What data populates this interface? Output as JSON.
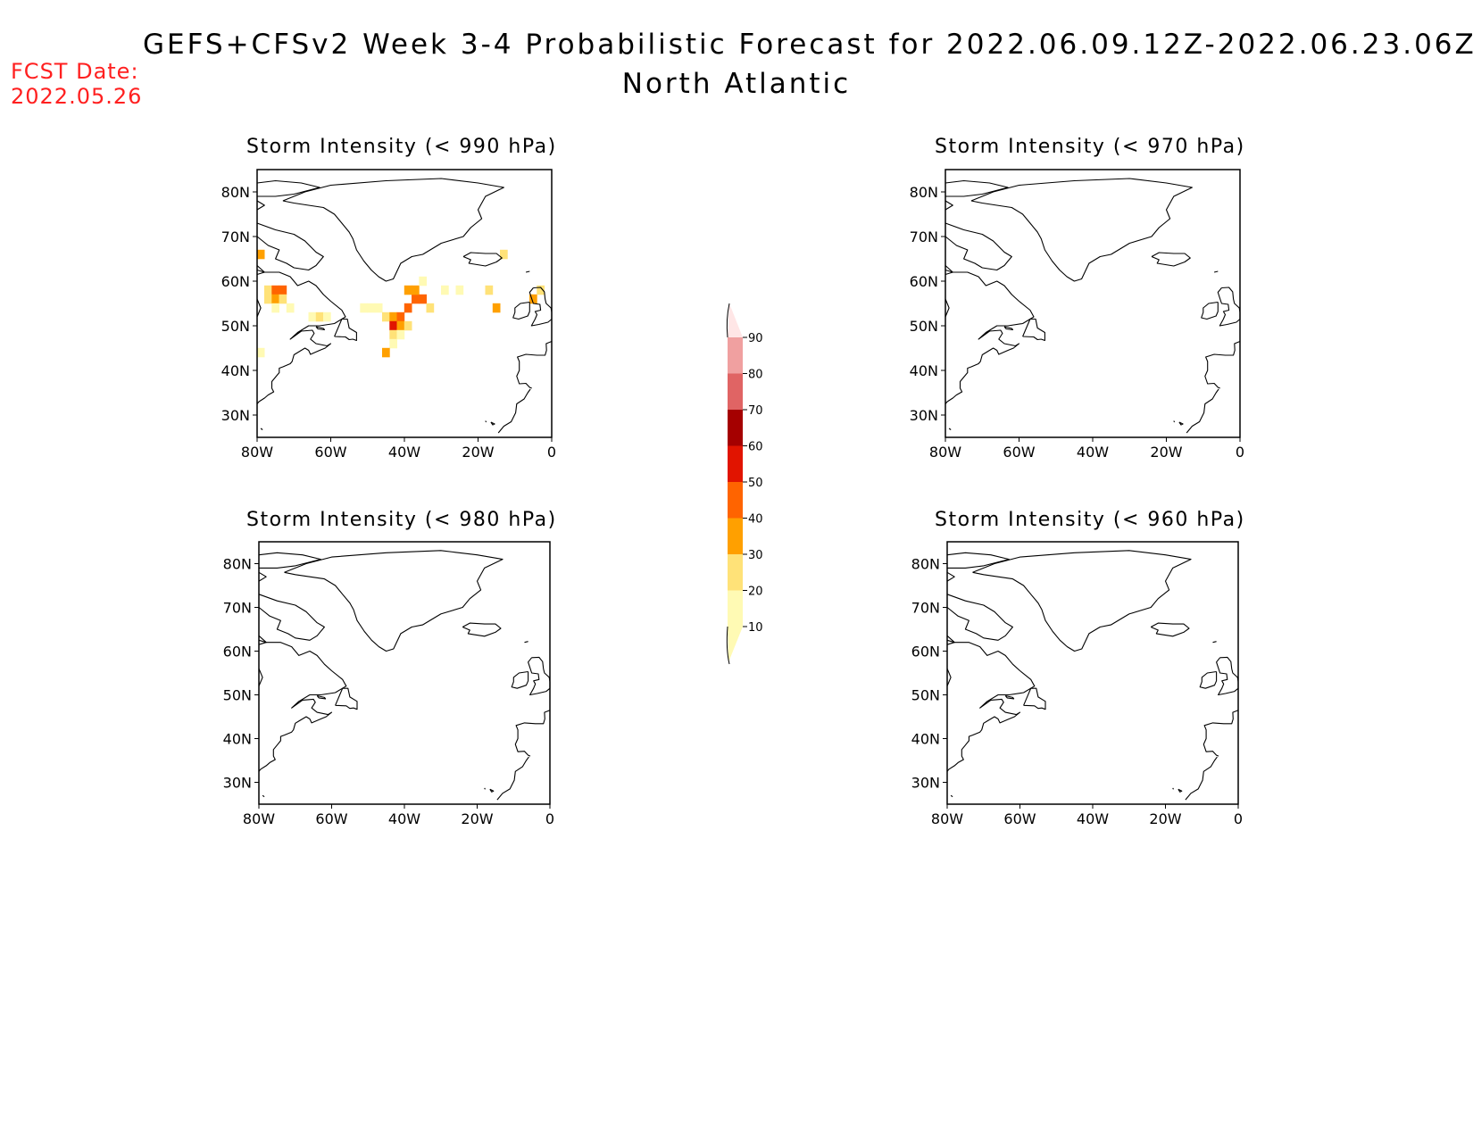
{
  "header": {
    "title": "GEFS+CFSv2 Week 3-4 Probabilistic Forecast for 2022.06.09.12Z-2022.06.23.06Z",
    "subtitle": "North Atlantic",
    "fcst_label": "FCST Date:",
    "fcst_date": "2022.05.26"
  },
  "axes": {
    "lat_ticks": [
      "80N",
      "70N",
      "60N",
      "50N",
      "40N",
      "30N"
    ],
    "lon_ticks": [
      "80W",
      "60W",
      "40W",
      "20W",
      "0"
    ],
    "lat_range": [
      25,
      85
    ],
    "lon_range": [
      -80,
      0
    ]
  },
  "panels": [
    {
      "title": "Storm Intensity (< 990 hPa)",
      "threshold_hpa": 990,
      "has_probability": true
    },
    {
      "title": "Storm Intensity (< 970 hPa)",
      "threshold_hpa": 970,
      "has_probability": false
    },
    {
      "title": "Storm Intensity (< 980 hPa)",
      "threshold_hpa": 980,
      "has_probability": false
    },
    {
      "title": "Storm Intensity (< 960 hPa)",
      "threshold_hpa": 960,
      "has_probability": false
    }
  ],
  "colorbar": {
    "labels": [
      "10",
      "20",
      "30",
      "40",
      "50",
      "60",
      "70",
      "80",
      "90"
    ],
    "colors": [
      "#fffab4",
      "#ffe278",
      "#ffa000",
      "#ff6400",
      "#e11400",
      "#a50000",
      "#e06464",
      "#f0a0a0",
      "#ffe6e6"
    ]
  },
  "chart_data": {
    "type": "heatmap",
    "units": "%",
    "cells_990hpa": [
      {
        "lon": -79,
        "lat": 66,
        "value": 35
      },
      {
        "lon": -77,
        "lat": 58,
        "value": 25
      },
      {
        "lon": -75,
        "lat": 58,
        "value": 45
      },
      {
        "lon": -73,
        "lat": 58,
        "value": 40
      },
      {
        "lon": -77,
        "lat": 56,
        "value": 25
      },
      {
        "lon": -75,
        "lat": 56,
        "value": 35
      },
      {
        "lon": -73,
        "lat": 56,
        "value": 25
      },
      {
        "lon": -75,
        "lat": 54,
        "value": 15
      },
      {
        "lon": -71,
        "lat": 54,
        "value": 15
      },
      {
        "lon": -79,
        "lat": 44,
        "value": 15
      },
      {
        "lon": -65,
        "lat": 52,
        "value": 15
      },
      {
        "lon": -63,
        "lat": 52,
        "value": 25
      },
      {
        "lon": -61,
        "lat": 52,
        "value": 15
      },
      {
        "lon": -51,
        "lat": 54,
        "value": 15
      },
      {
        "lon": -49,
        "lat": 54,
        "value": 15
      },
      {
        "lon": -47,
        "lat": 54,
        "value": 15
      },
      {
        "lon": -45,
        "lat": 52,
        "value": 25
      },
      {
        "lon": -43,
        "lat": 52,
        "value": 35
      },
      {
        "lon": -41,
        "lat": 52,
        "value": 45
      },
      {
        "lon": -39,
        "lat": 54,
        "value": 45
      },
      {
        "lon": -37,
        "lat": 56,
        "value": 45
      },
      {
        "lon": -39,
        "lat": 58,
        "value": 35
      },
      {
        "lon": -37,
        "lat": 58,
        "value": 35
      },
      {
        "lon": -35,
        "lat": 56,
        "value": 45
      },
      {
        "lon": -33,
        "lat": 54,
        "value": 25
      },
      {
        "lon": -43,
        "lat": 50,
        "value": 55
      },
      {
        "lon": -41,
        "lat": 50,
        "value": 35
      },
      {
        "lon": -39,
        "lat": 50,
        "value": 25
      },
      {
        "lon": -43,
        "lat": 48,
        "value": 25
      },
      {
        "lon": -41,
        "lat": 48,
        "value": 15
      },
      {
        "lon": -43,
        "lat": 46,
        "value": 15
      },
      {
        "lon": -45,
        "lat": 44,
        "value": 35
      },
      {
        "lon": -35,
        "lat": 60,
        "value": 15
      },
      {
        "lon": -29,
        "lat": 58,
        "value": 15
      },
      {
        "lon": -25,
        "lat": 58,
        "value": 15
      },
      {
        "lon": -17,
        "lat": 58,
        "value": 25
      },
      {
        "lon": -13,
        "lat": 66,
        "value": 25
      },
      {
        "lon": -15,
        "lat": 54,
        "value": 35
      },
      {
        "lon": -5,
        "lat": 56,
        "value": 35
      },
      {
        "lon": -3,
        "lat": 58,
        "value": 25
      }
    ]
  }
}
